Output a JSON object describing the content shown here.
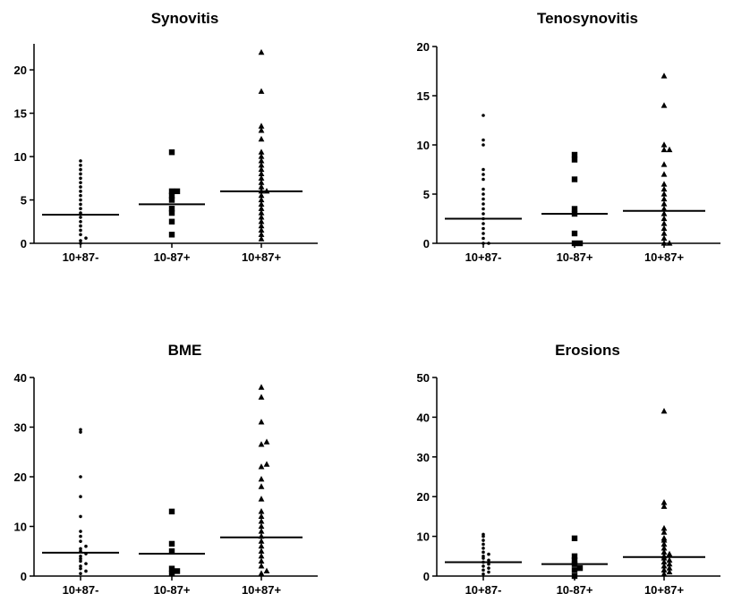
{
  "chart_data": [
    {
      "type": "scatter",
      "title": "Synovitis",
      "ylim": [
        0,
        23
      ],
      "yticks": [
        0,
        5,
        10,
        15,
        20
      ],
      "categories": [
        "10+87-",
        "10-87+",
        "10+87+"
      ],
      "markers": [
        "dot",
        "square",
        "triangle"
      ],
      "medians": [
        3.3,
        4.5,
        6
      ],
      "series": [
        {
          "values": [
            0,
            0.3,
            0.6,
            1,
            1.5,
            2,
            2.5,
            3,
            3.5,
            4,
            4.5,
            5,
            5.5,
            6,
            6.5,
            7,
            7.5,
            8,
            8.5,
            9,
            9.5
          ]
        },
        {
          "values": [
            1,
            2.5,
            3.5,
            4,
            5,
            5.5,
            6,
            6,
            10.5
          ]
        },
        {
          "values": [
            0.5,
            1,
            1.5,
            2,
            2.5,
            3,
            3.5,
            4,
            4.5,
            5,
            5.5,
            6,
            6,
            6.5,
            7,
            7.5,
            8,
            8.5,
            9,
            9.5,
            10,
            10.5,
            12,
            13,
            13.5,
            17.5,
            22
          ]
        }
      ]
    },
    {
      "type": "scatter",
      "title": "Tenosynovitis",
      "ylim": [
        0,
        20
      ],
      "yticks": [
        0,
        5,
        10,
        15,
        20
      ],
      "categories": [
        "10+87-",
        "10-87+",
        "10+87+"
      ],
      "markers": [
        "dot",
        "square",
        "triangle"
      ],
      "medians": [
        2.5,
        3,
        3.3
      ],
      "series": [
        {
          "values": [
            0,
            0,
            0.5,
            1,
            1.5,
            2,
            2.5,
            3,
            3.5,
            4,
            4.5,
            5,
            5.5,
            6.5,
            7,
            7.5,
            10,
            10.5,
            13
          ]
        },
        {
          "values": [
            0,
            0,
            1,
            3,
            3.5,
            6.5,
            8.5,
            9
          ]
        },
        {
          "values": [
            0,
            0,
            0.5,
            1,
            1.5,
            2,
            2.5,
            3,
            3.5,
            4,
            4.5,
            5,
            5.5,
            6,
            7,
            8,
            9.5,
            9.5,
            10,
            14,
            17
          ]
        }
      ]
    },
    {
      "type": "scatter",
      "title": "BME",
      "ylim": [
        0,
        40
      ],
      "yticks": [
        0,
        10,
        20,
        30,
        40
      ],
      "categories": [
        "10+87-",
        "10-87+",
        "10+87+"
      ],
      "markers": [
        "dot",
        "square",
        "triangle"
      ],
      "medians": [
        4.7,
        4.5,
        7.8
      ],
      "series": [
        {
          "values": [
            0.5,
            1,
            1.5,
            2,
            2.5,
            3,
            3.5,
            4,
            4.5,
            5,
            5.5,
            6,
            7,
            8,
            9,
            12,
            16,
            20,
            29,
            29.5
          ]
        },
        {
          "values": [
            0.5,
            1,
            1.5,
            5,
            6.5,
            13
          ]
        },
        {
          "values": [
            0.5,
            1,
            2,
            3,
            4,
            5,
            6,
            7,
            8,
            9,
            10,
            11,
            12,
            13,
            15.5,
            18,
            19.5,
            22,
            22.5,
            26.5,
            27,
            31,
            36,
            38
          ]
        }
      ]
    },
    {
      "type": "scatter",
      "title": "Erosions",
      "ylim": [
        0,
        50
      ],
      "yticks": [
        0,
        10,
        20,
        30,
        40,
        50
      ],
      "categories": [
        "10+87-",
        "10-87+",
        "10+87+"
      ],
      "markers": [
        "dot",
        "square",
        "triangle"
      ],
      "medians": [
        3.5,
        3,
        4.8
      ],
      "series": [
        {
          "values": [
            0.5,
            1,
            1.5,
            2,
            2.5,
            3,
            3.5,
            4,
            4.5,
            5,
            5.5,
            6,
            7,
            8,
            9,
            10,
            10.5
          ]
        },
        {
          "values": [
            0,
            1.5,
            2,
            3,
            4,
            5,
            9.5
          ]
        },
        {
          "values": [
            0.5,
            1,
            1.5,
            2,
            2.5,
            3,
            3.5,
            4,
            4.5,
            5,
            5.5,
            6,
            7,
            8,
            9,
            9.5,
            11,
            12,
            17.5,
            18.5,
            41.5
          ]
        }
      ]
    }
  ]
}
